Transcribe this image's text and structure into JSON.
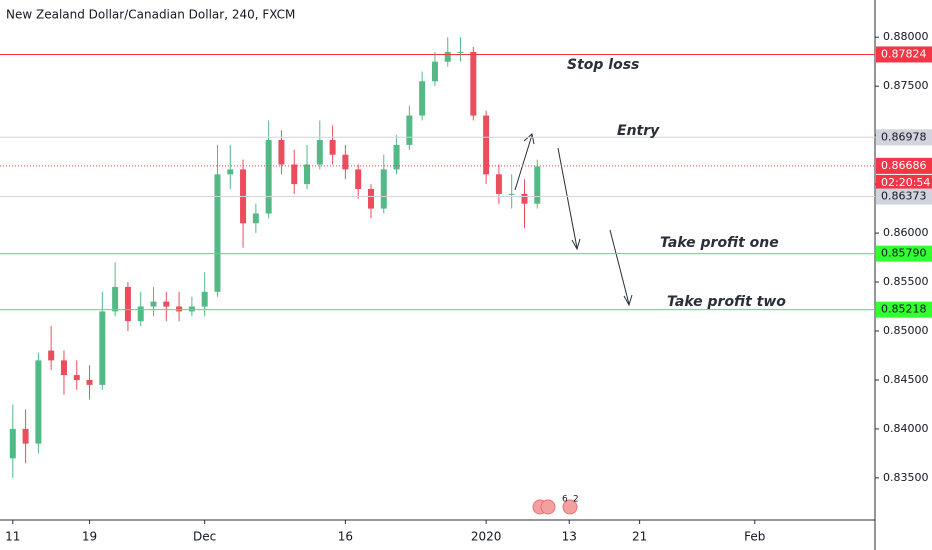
{
  "chart_data": {
    "type": "candlestick",
    "title": "New Zealand Dollar/Canadian Dollar, 240, FXCM",
    "up_color": "#53b987",
    "down_color": "#eb4d5c",
    "x": [
      0,
      1,
      2,
      3,
      4,
      5,
      6,
      7,
      8,
      9,
      10,
      11,
      12,
      13,
      14,
      15,
      16,
      17,
      18,
      19,
      20,
      21,
      22,
      23,
      24,
      25,
      26,
      27,
      28,
      29,
      30,
      31,
      32,
      33,
      34,
      35,
      36,
      37,
      38,
      39,
      40,
      41
    ],
    "open": [
      0.837,
      0.84,
      0.8385,
      0.848,
      0.847,
      0.8455,
      0.845,
      0.8445,
      0.852,
      0.8545,
      0.851,
      0.8525,
      0.853,
      0.8525,
      0.852,
      0.8525,
      0.854,
      0.866,
      0.8665,
      0.861,
      0.862,
      0.8695,
      0.867,
      0.865,
      0.867,
      0.8695,
      0.868,
      0.8665,
      0.8645,
      0.8625,
      0.8665,
      0.869,
      0.872,
      0.8755,
      0.8775,
      0.8785,
      0.8785,
      0.872,
      0.866,
      0.864,
      0.864,
      0.863
    ],
    "high": [
      0.8425,
      0.842,
      0.8478,
      0.8505,
      0.848,
      0.847,
      0.8465,
      0.854,
      0.857,
      0.855,
      0.854,
      0.8545,
      0.854,
      0.854,
      0.8535,
      0.856,
      0.869,
      0.869,
      0.8675,
      0.863,
      0.8715,
      0.8705,
      0.8685,
      0.869,
      0.8715,
      0.871,
      0.869,
      0.867,
      0.865,
      0.868,
      0.87,
      0.873,
      0.8765,
      0.8785,
      0.88,
      0.88,
      0.879,
      0.8725,
      0.867,
      0.866,
      0.8655,
      0.8675
    ],
    "low": [
      0.835,
      0.8365,
      0.8375,
      0.846,
      0.8435,
      0.844,
      0.843,
      0.844,
      0.8515,
      0.85,
      0.8505,
      0.8515,
      0.851,
      0.851,
      0.8515,
      0.8515,
      0.8535,
      0.8645,
      0.8585,
      0.86,
      0.8615,
      0.866,
      0.864,
      0.8645,
      0.8665,
      0.867,
      0.8655,
      0.8635,
      0.8615,
      0.862,
      0.866,
      0.8685,
      0.8715,
      0.875,
      0.877,
      0.8775,
      0.8715,
      0.865,
      0.863,
      0.8625,
      0.8605,
      0.8625
    ],
    "close": [
      0.84,
      0.8385,
      0.847,
      0.847,
      0.8455,
      0.845,
      0.8445,
      0.852,
      0.8545,
      0.851,
      0.8525,
      0.853,
      0.8525,
      0.852,
      0.8525,
      0.854,
      0.866,
      0.8665,
      0.861,
      0.862,
      0.8695,
      0.867,
      0.865,
      0.867,
      0.8695,
      0.868,
      0.8665,
      0.8645,
      0.8625,
      0.8665,
      0.869,
      0.872,
      0.8755,
      0.8775,
      0.8785,
      0.8785,
      0.872,
      0.866,
      0.864,
      0.864,
      0.863,
      0.8668
    ],
    "xlim": [
      -1,
      67.4
    ],
    "xticks": [
      {
        "value": 0,
        "label": "11"
      },
      {
        "value": 6,
        "label": "19"
      },
      {
        "value": 15,
        "label": "Dec"
      },
      {
        "value": 26,
        "label": "16"
      },
      {
        "value": 37,
        "label": "2020"
      },
      {
        "value": 43.5,
        "label": "13"
      },
      {
        "value": 49,
        "label": "21"
      },
      {
        "value": 58,
        "label": "Feb"
      }
    ],
    "ylim": [
      0.8307,
      0.8838
    ],
    "yticks": [
      {
        "value": 0.835,
        "label": "0.83500"
      },
      {
        "value": 0.84,
        "label": "0.84000"
      },
      {
        "value": 0.845,
        "label": "0.84500"
      },
      {
        "value": 0.85,
        "label": "0.85000"
      },
      {
        "value": 0.855,
        "label": "0.85500"
      },
      {
        "value": 0.86,
        "label": "0.86000"
      },
      {
        "value": 0.865,
        "label": "0.86500"
      },
      {
        "value": 0.87,
        "label": "0.87000"
      },
      {
        "value": 0.875,
        "label": "0.87500"
      },
      {
        "value": 0.88,
        "label": "0.88000"
      }
    ],
    "levels": [
      {
        "value": 0.87824,
        "label": "0.87824",
        "color": "#f23645",
        "text_color": "#ffffff",
        "style": "solid"
      },
      {
        "value": 0.86978,
        "label": "0.86978",
        "color": "#d1d4dc",
        "text_color": "#131722",
        "style": "solid"
      },
      {
        "value": 0.86686,
        "label": "0.86686",
        "color": "#f23645",
        "text_color": "#ffffff",
        "style": "dotted"
      },
      {
        "value": 0.86373,
        "label": "0.86373",
        "color": "#d1d4dc",
        "text_color": "#131722",
        "style": "solid"
      },
      {
        "value": 0.8579,
        "label": "0.85790",
        "color": "#33ff33",
        "text_color": "#131722",
        "style": "solid"
      },
      {
        "value": 0.85218,
        "label": "0.85218",
        "color": "#33ff33",
        "text_color": "#131722",
        "style": "solid"
      }
    ],
    "countdown": "02:20:54",
    "annotations": [
      "Stop loss",
      "Entry",
      "Take profit one",
      "Take profit two"
    ],
    "event_badges": [
      "6",
      "2"
    ]
  }
}
